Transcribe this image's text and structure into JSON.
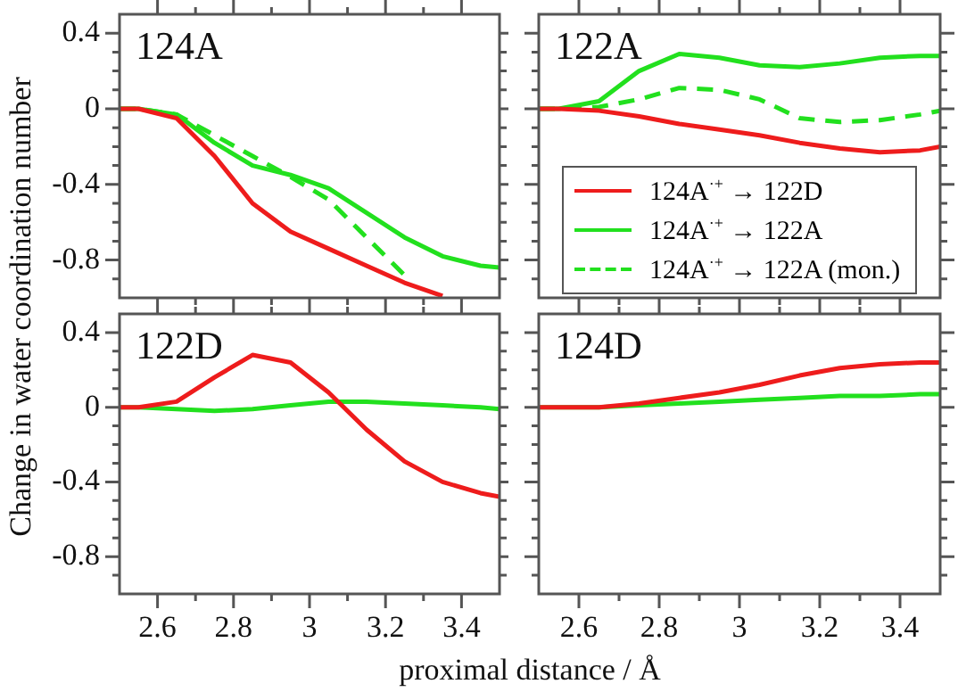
{
  "chart_data": [
    {
      "type": "line",
      "title": "124A",
      "ylabel": "Change in water coordination number",
      "marker": "none",
      "tick_labels": "y",
      "x": [
        2.5,
        2.55,
        2.65,
        2.75,
        2.85,
        2.95,
        3.05,
        3.15,
        3.25,
        3.35,
        3.45,
        3.5
      ],
      "xlim": [
        2.5,
        3.5
      ],
      "xticks": [
        2.6,
        {
          "value": 2.7,
          "label": null
        },
        2.8,
        {
          "value": 2.9,
          "label": null
        },
        3,
        {
          "value": 3.1,
          "label": null
        },
        3.2,
        {
          "value": 3.3,
          "label": null
        },
        3.4
      ],
      "ylim": [
        -1,
        0.5
      ],
      "yticks": [
        {
          "value": -0.9,
          "label": null
        },
        -0.8,
        {
          "value": -0.7,
          "label": null
        },
        {
          "value": -0.6,
          "label": null
        },
        {
          "value": -0.5,
          "label": null
        },
        -0.4,
        {
          "value": -0.3,
          "label": null
        },
        {
          "value": -0.2,
          "label": null
        },
        {
          "value": -0.1,
          "label": null
        },
        0,
        {
          "value": 0.1,
          "label": null
        },
        {
          "value": 0.2,
          "label": null
        },
        {
          "value": 0.3,
          "label": null
        },
        0.4
      ],
      "series": [
        {
          "color": "#ee1c1c",
          "values": [
            0,
            0,
            -0.05,
            -0.25,
            -0.5,
            -0.65,
            -0.74,
            -0.83,
            -0.92,
            -0.99,
            null,
            null
          ]
        },
        {
          "color": "#22e01e",
          "values": [
            0,
            0,
            -0.03,
            -0.18,
            -0.3,
            -0.35,
            -0.42,
            -0.55,
            -0.68,
            -0.78,
            -0.83,
            -0.84
          ]
        },
        {
          "color": "#22e01e",
          "line_style": "dashed",
          "values": [
            0,
            0,
            -0.03,
            -0.14,
            -0.25,
            -0.36,
            -0.48,
            -0.68,
            -0.88,
            null,
            null,
            null
          ]
        }
      ]
    },
    {
      "type": "line",
      "title": "122A",
      "marker": "none",
      "tick_labels": false,
      "legend": "bottom",
      "x": [
        2.5,
        2.55,
        2.65,
        2.75,
        2.85,
        2.95,
        3.05,
        3.15,
        3.25,
        3.35,
        3.45,
        3.5
      ],
      "xlim": [
        2.5,
        3.5
      ],
      "xticks": [
        2.6,
        {
          "value": 2.7,
          "label": null
        },
        2.8,
        {
          "value": 2.9,
          "label": null
        },
        3,
        {
          "value": 3.1,
          "label": null
        },
        3.2,
        {
          "value": 3.3,
          "label": null
        },
        3.4
      ],
      "ylim": [
        -1,
        0.5
      ],
      "yticks": [
        {
          "value": -0.9,
          "label": null
        },
        -0.8,
        {
          "value": -0.7,
          "label": null
        },
        {
          "value": -0.6,
          "label": null
        },
        {
          "value": -0.5,
          "label": null
        },
        -0.4,
        {
          "value": -0.3,
          "label": null
        },
        {
          "value": -0.2,
          "label": null
        },
        {
          "value": -0.1,
          "label": null
        },
        0,
        {
          "value": 0.1,
          "label": null
        },
        {
          "value": 0.2,
          "label": null
        },
        {
          "value": 0.3,
          "label": null
        },
        0.4
      ],
      "series": [
        {
          "name": "124A$^{·+}$ → 122D",
          "color": "#ee1c1c",
          "values": [
            0,
            0,
            -0.01,
            -0.04,
            -0.08,
            -0.11,
            -0.14,
            -0.18,
            -0.21,
            -0.23,
            -0.22,
            -0.2
          ]
        },
        {
          "name": "124A$^{·+}$ → 122A",
          "color": "#22e01e",
          "values": [
            0,
            0,
            0.04,
            0.2,
            0.29,
            0.27,
            0.23,
            0.22,
            0.24,
            0.27,
            0.28,
            0.28
          ]
        },
        {
          "name": "124A$^{·+}$ → 122A (mon.)",
          "color": "#22e01e",
          "line_style": "dashed",
          "values": [
            0,
            0,
            0.01,
            0.05,
            0.11,
            0.1,
            0.05,
            -0.05,
            -0.07,
            -0.06,
            -0.03,
            -0.01
          ]
        }
      ]
    },
    {
      "type": "line",
      "title": "122D",
      "xlabel": "proximal distance / Å",
      "marker": "none",
      "x": [
        2.5,
        2.55,
        2.65,
        2.75,
        2.85,
        2.95,
        3.05,
        3.15,
        3.25,
        3.35,
        3.45,
        3.5
      ],
      "xlim": [
        2.5,
        3.5
      ],
      "xticks": [
        2.6,
        {
          "value": 2.7,
          "label": null
        },
        2.8,
        {
          "value": 2.9,
          "label": null
        },
        3,
        {
          "value": 3.1,
          "label": null
        },
        3.2,
        {
          "value": 3.3,
          "label": null
        },
        3.4
      ],
      "ylim": [
        -1,
        0.5
      ],
      "yticks": [
        {
          "value": -0.9,
          "label": null
        },
        -0.8,
        {
          "value": -0.7,
          "label": null
        },
        {
          "value": -0.6,
          "label": null
        },
        {
          "value": -0.5,
          "label": null
        },
        -0.4,
        {
          "value": -0.3,
          "label": null
        },
        {
          "value": -0.2,
          "label": null
        },
        {
          "value": -0.1,
          "label": null
        },
        0,
        {
          "value": 0.1,
          "label": null
        },
        {
          "value": 0.2,
          "label": null
        },
        {
          "value": 0.3,
          "label": null
        },
        0.4
      ],
      "series": [
        {
          "color": "#ee1c1c",
          "values": [
            0,
            0,
            0.03,
            0.16,
            0.28,
            0.24,
            0.08,
            -0.12,
            -0.29,
            -0.4,
            -0.46,
            -0.48
          ]
        },
        {
          "color": "#22e01e",
          "values": [
            0,
            0,
            -0.01,
            -0.02,
            -0.01,
            0.01,
            0.03,
            0.03,
            0.02,
            0.01,
            0,
            -0.01
          ]
        }
      ]
    },
    {
      "type": "line",
      "title": "124D",
      "marker": "none",
      "tick_labels": "x",
      "x": [
        2.5,
        2.55,
        2.65,
        2.75,
        2.85,
        2.95,
        3.05,
        3.15,
        3.25,
        3.35,
        3.45,
        3.5
      ],
      "xlim": [
        2.5,
        3.5
      ],
      "xticks": [
        2.6,
        {
          "value": 2.7,
          "label": null
        },
        2.8,
        {
          "value": 2.9,
          "label": null
        },
        3,
        {
          "value": 3.1,
          "label": null
        },
        3.2,
        {
          "value": 3.3,
          "label": null
        },
        3.4
      ],
      "ylim": [
        -1,
        0.5
      ],
      "yticks": [
        {
          "value": -0.9,
          "label": null
        },
        -0.8,
        {
          "value": -0.7,
          "label": null
        },
        {
          "value": -0.6,
          "label": null
        },
        {
          "value": -0.5,
          "label": null
        },
        -0.4,
        {
          "value": -0.3,
          "label": null
        },
        {
          "value": -0.2,
          "label": null
        },
        {
          "value": -0.1,
          "label": null
        },
        0,
        {
          "value": 0.1,
          "label": null
        },
        {
          "value": 0.2,
          "label": null
        },
        {
          "value": 0.3,
          "label": null
        },
        0.4
      ],
      "series": [
        {
          "color": "#ee1c1c",
          "values": [
            0,
            0,
            0,
            0.02,
            0.05,
            0.08,
            0.12,
            0.17,
            0.21,
            0.23,
            0.24,
            0.24
          ]
        },
        {
          "color": "#22e01e",
          "values": [
            0,
            0,
            0,
            0.01,
            0.02,
            0.03,
            0.04,
            0.05,
            0.06,
            0.06,
            0.07,
            0.07
          ]
        }
      ]
    }
  ]
}
